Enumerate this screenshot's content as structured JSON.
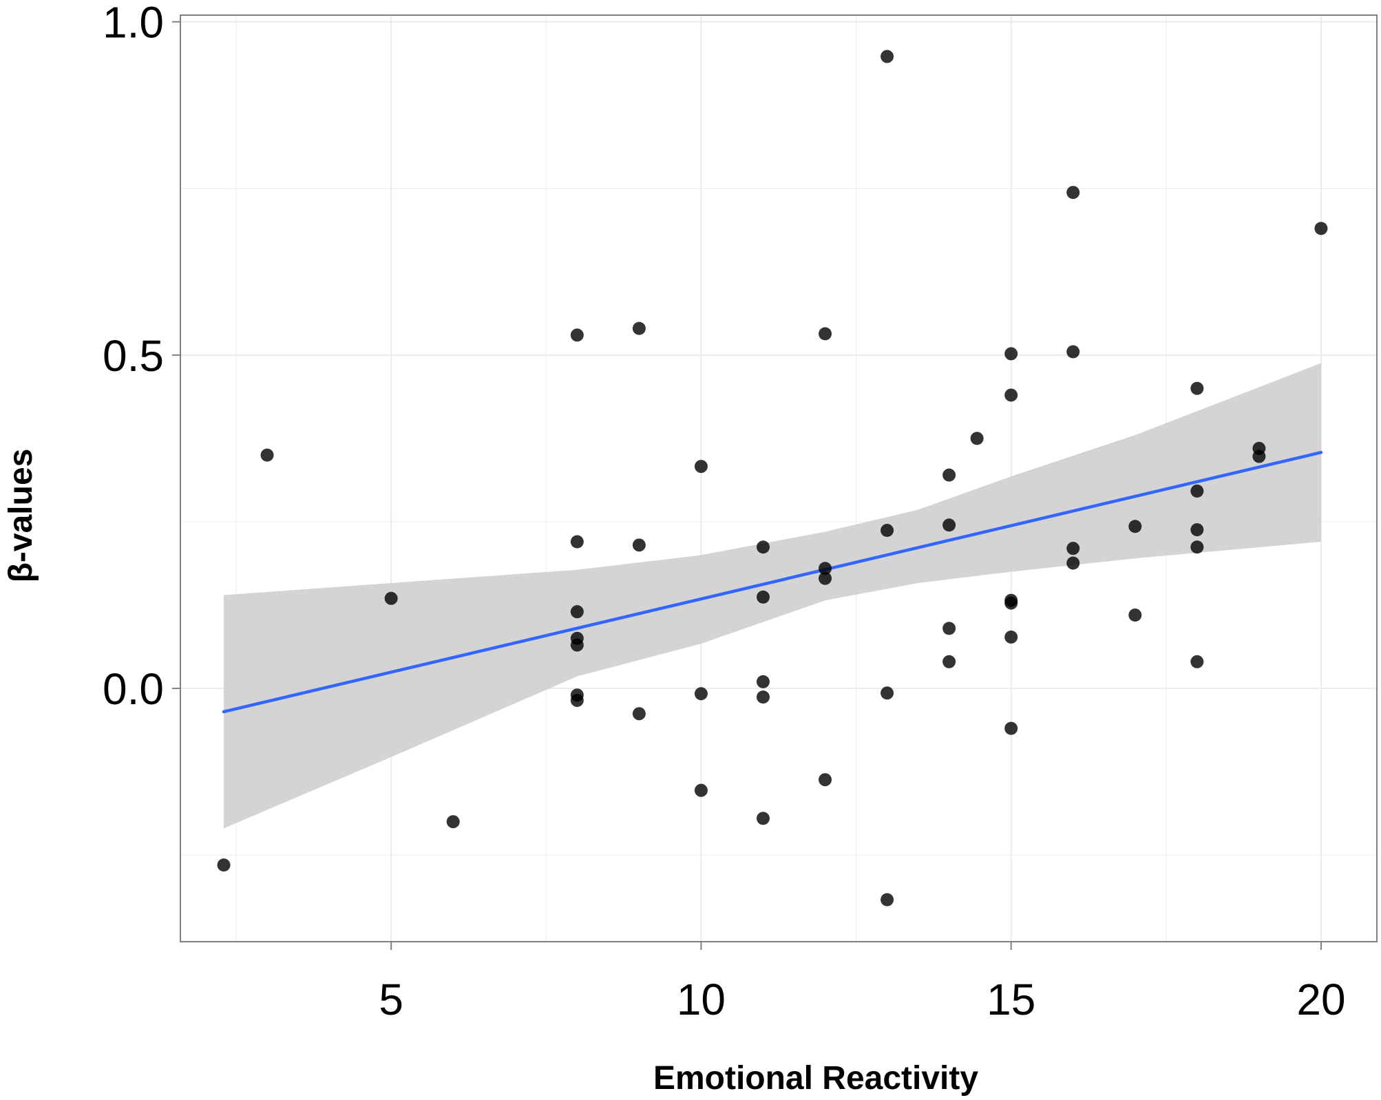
{
  "chart_data": {
    "type": "scatter",
    "title": "",
    "xlabel": "Emotional Reactivity",
    "ylabel": "β-values",
    "xlim": [
      1.6,
      20.9
    ],
    "ylim": [
      -0.38,
      1.01
    ],
    "x_ticks": [
      5,
      10,
      15,
      20
    ],
    "x_tick_labels": [
      "5",
      "10",
      "15",
      "20"
    ],
    "x_minor_ticks": [
      2.5,
      7.5,
      12.5,
      17.5
    ],
    "y_ticks": [
      0.0,
      0.5,
      1.0
    ],
    "y_tick_labels": [
      "0.0",
      "0.5",
      "1.0"
    ],
    "y_minor_ticks": [
      -0.25,
      0.25,
      0.75
    ],
    "grid": true,
    "points": [
      {
        "x": 2.3,
        "y": -0.265
      },
      {
        "x": 3.0,
        "y": 0.35
      },
      {
        "x": 5.0,
        "y": 0.135
      },
      {
        "x": 6.0,
        "y": -0.2
      },
      {
        "x": 8.0,
        "y": 0.53
      },
      {
        "x": 8.0,
        "y": 0.22
      },
      {
        "x": 8.0,
        "y": 0.115
      },
      {
        "x": 8.0,
        "y": 0.075
      },
      {
        "x": 8.0,
        "y": 0.065
      },
      {
        "x": 8.0,
        "y": -0.01
      },
      {
        "x": 8.0,
        "y": -0.018
      },
      {
        "x": 9.0,
        "y": 0.54
      },
      {
        "x": 9.0,
        "y": 0.215
      },
      {
        "x": 9.0,
        "y": -0.038
      },
      {
        "x": 10.0,
        "y": 0.333
      },
      {
        "x": 10.0,
        "y": -0.008
      },
      {
        "x": 10.0,
        "y": -0.153
      },
      {
        "x": 11.0,
        "y": 0.212
      },
      {
        "x": 11.0,
        "y": 0.137
      },
      {
        "x": 11.0,
        "y": 0.01
      },
      {
        "x": 11.0,
        "y": -0.013
      },
      {
        "x": 11.0,
        "y": -0.195
      },
      {
        "x": 12.0,
        "y": 0.532
      },
      {
        "x": 12.0,
        "y": 0.18
      },
      {
        "x": 12.0,
        "y": 0.165
      },
      {
        "x": 12.0,
        "y": -0.137
      },
      {
        "x": 13.0,
        "y": 0.948
      },
      {
        "x": 13.0,
        "y": 0.237
      },
      {
        "x": 13.0,
        "y": -0.007
      },
      {
        "x": 13.0,
        "y": -0.317
      },
      {
        "x": 14.0,
        "y": 0.32
      },
      {
        "x": 14.0,
        "y": 0.245
      },
      {
        "x": 14.0,
        "y": 0.09
      },
      {
        "x": 14.0,
        "y": 0.04
      },
      {
        "x": 14.45,
        "y": 0.375
      },
      {
        "x": 15.0,
        "y": 0.502
      },
      {
        "x": 15.0,
        "y": 0.44
      },
      {
        "x": 15.0,
        "y": 0.132
      },
      {
        "x": 15.0,
        "y": 0.128
      },
      {
        "x": 15.0,
        "y": 0.077
      },
      {
        "x": 15.0,
        "y": -0.06
      },
      {
        "x": 16.0,
        "y": 0.744
      },
      {
        "x": 16.0,
        "y": 0.505
      },
      {
        "x": 16.0,
        "y": 0.21
      },
      {
        "x": 16.0,
        "y": 0.188
      },
      {
        "x": 17.0,
        "y": 0.243
      },
      {
        "x": 17.0,
        "y": 0.11
      },
      {
        "x": 18.0,
        "y": 0.45
      },
      {
        "x": 18.0,
        "y": 0.296
      },
      {
        "x": 18.0,
        "y": 0.238
      },
      {
        "x": 18.0,
        "y": 0.212
      },
      {
        "x": 18.0,
        "y": 0.04
      },
      {
        "x": 19.0,
        "y": 0.36
      },
      {
        "x": 19.0,
        "y": 0.348
      },
      {
        "x": 20.0,
        "y": 0.69
      }
    ],
    "fit_line": {
      "x": [
        2.3,
        20.0
      ],
      "y": [
        -0.035,
        0.354
      ],
      "color": "#3366ff"
    },
    "confidence_band": {
      "x": [
        2.3,
        5.0,
        8.0,
        10.0,
        12.0,
        13.5,
        15.0,
        17.0,
        20.0
      ],
      "upper": [
        0.14,
        0.158,
        0.178,
        0.2,
        0.235,
        0.268,
        0.318,
        0.38,
        0.488
      ],
      "lower": [
        -0.21,
        -0.103,
        0.018,
        0.067,
        0.132,
        0.158,
        0.175,
        0.195,
        0.22
      ],
      "color": "#cccccc"
    },
    "colors": {
      "point": "#000000",
      "panel_border": "#7f7f7f",
      "grid": "#ebebeb",
      "background": "#ffffff"
    }
  }
}
